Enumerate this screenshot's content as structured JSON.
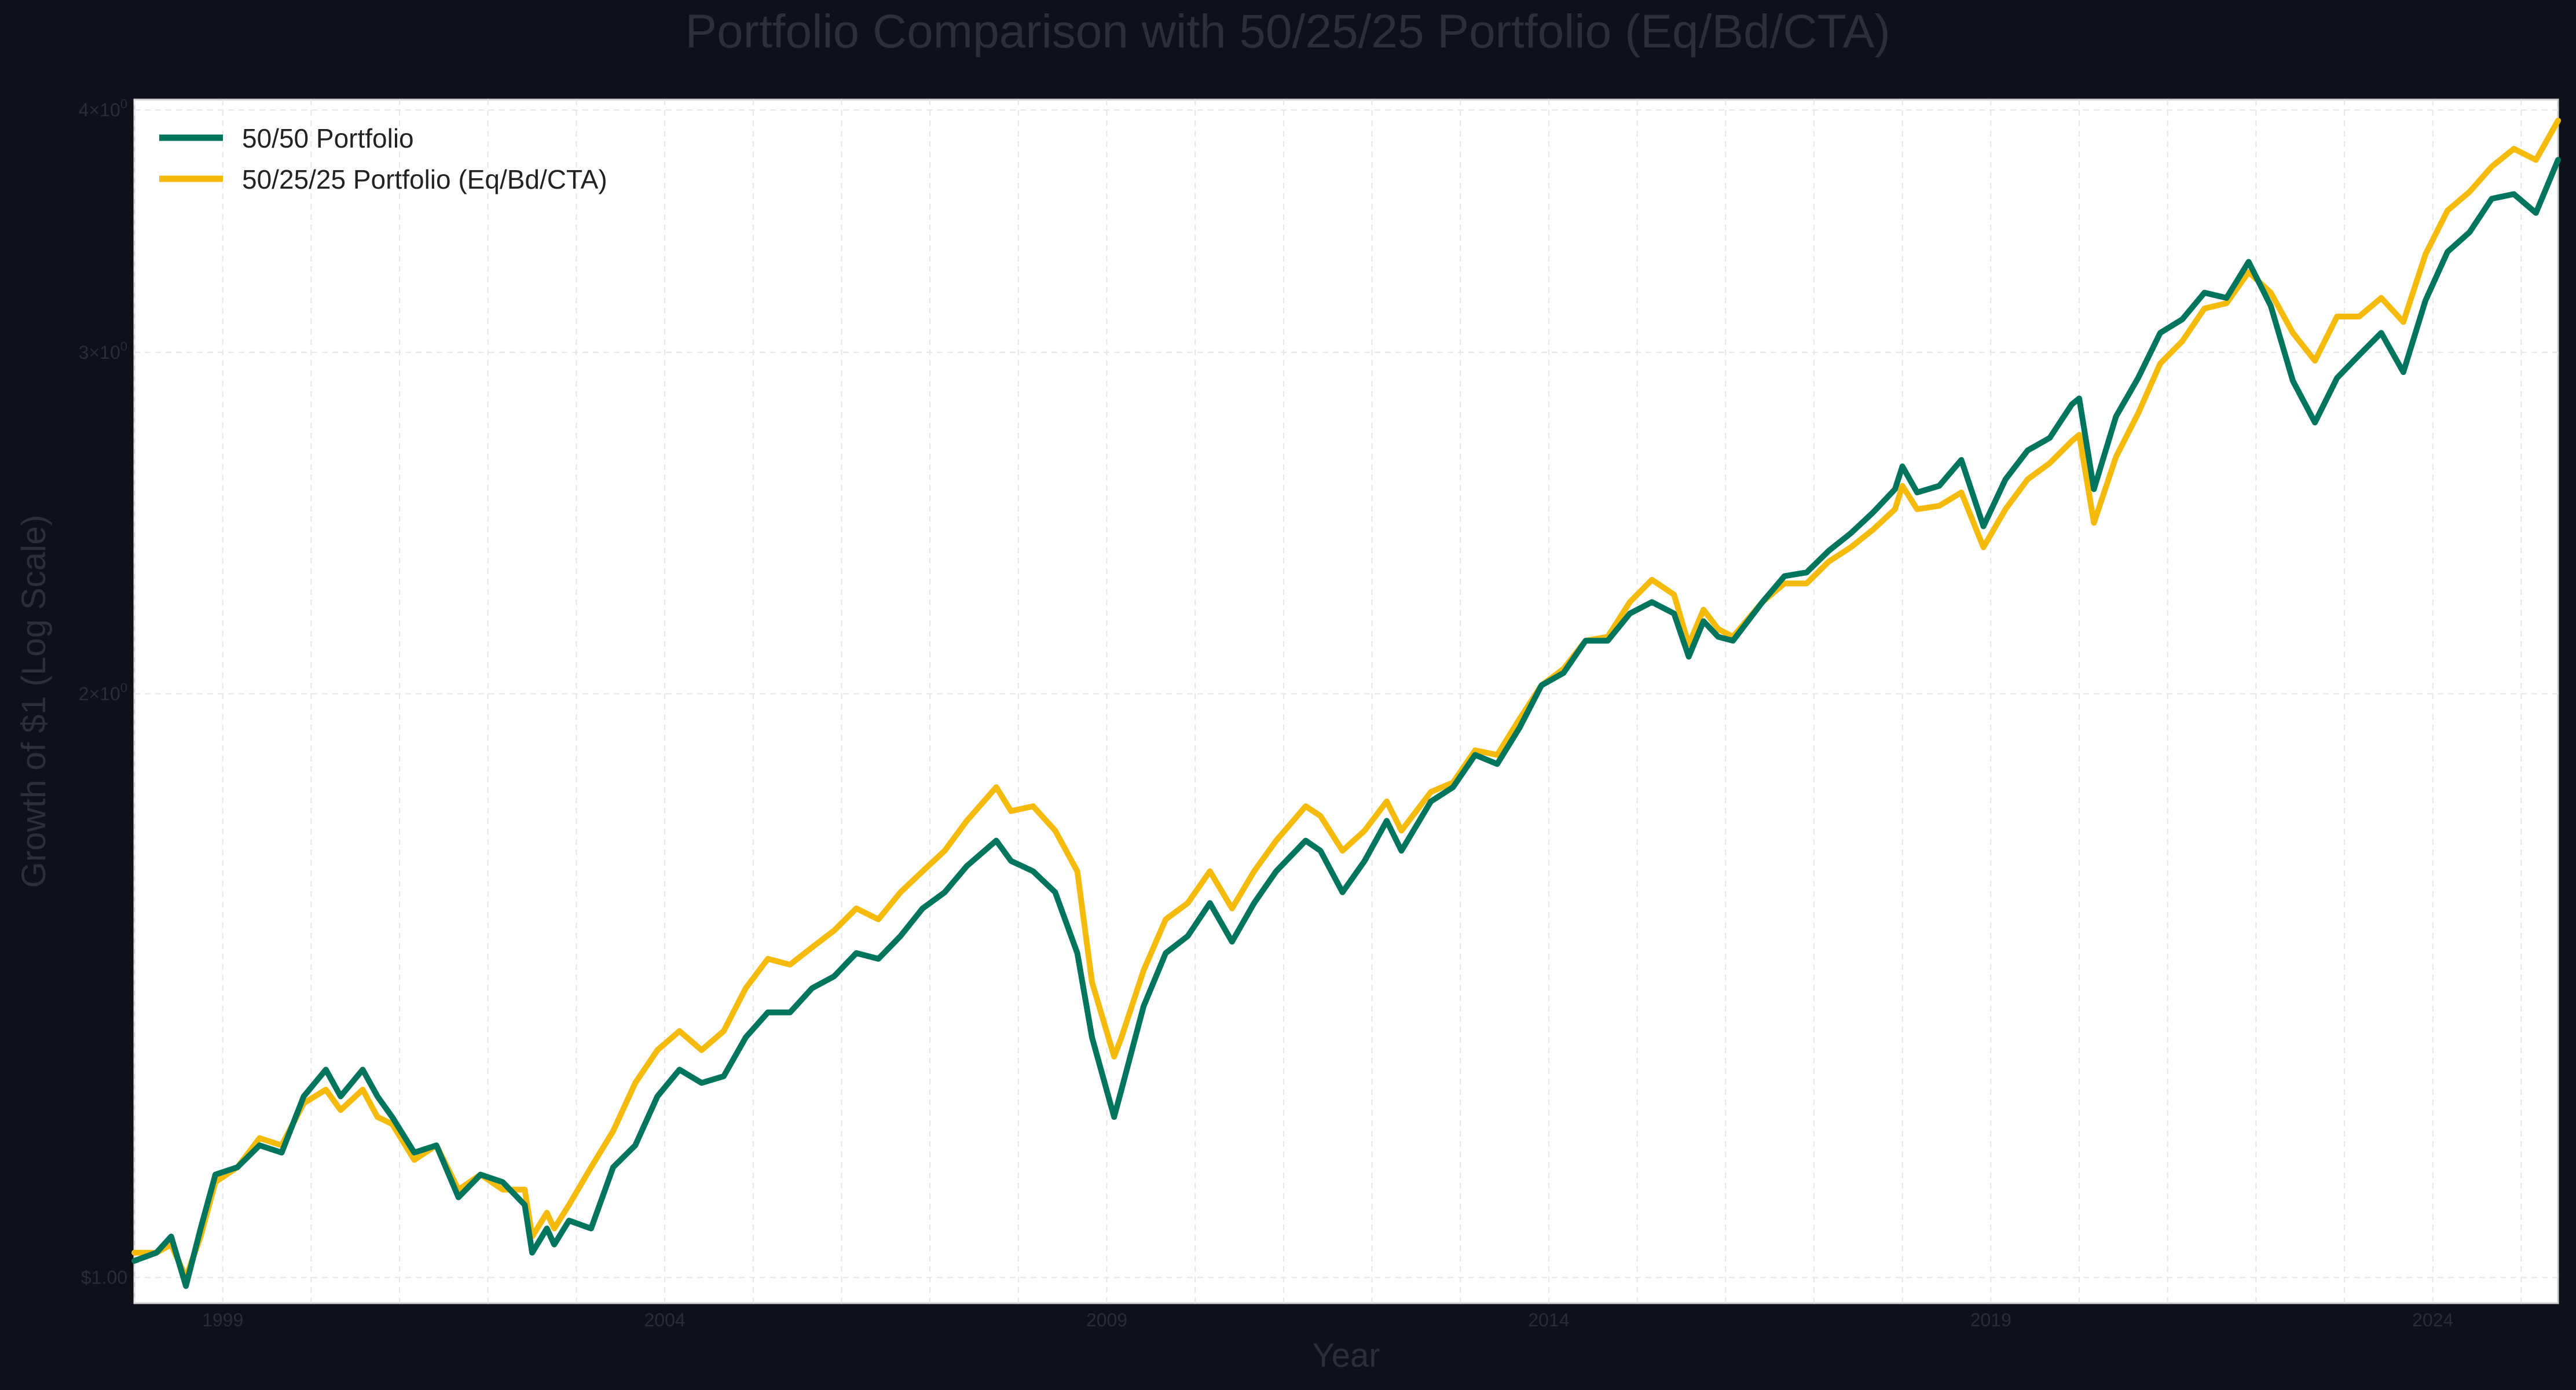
{
  "chart_data": {
    "type": "line",
    "title": "Portfolio Comparison with 50/25/25 Portfolio (Eq/Bd/CTA)",
    "xlabel": "Year",
    "ylabel": "Growth of $1 (Log Scale)",
    "y_scale": "log",
    "grid": true,
    "legend_position": "top-left",
    "xlim": [
      "1998-01",
      "2025-06"
    ],
    "ylim": [
      0.97,
      4.05
    ],
    "x_ticks": [
      {
        "label": "1999",
        "value": "1999-01"
      },
      {
        "label": "2004",
        "value": "2004-01"
      },
      {
        "label": "2009",
        "value": "2009-01"
      },
      {
        "label": "2014",
        "value": "2014-01"
      },
      {
        "label": "2019",
        "value": "2019-01"
      },
      {
        "label": "2024",
        "value": "2024-01"
      }
    ],
    "y_ticks": [
      {
        "value": 1,
        "label": "$1.00"
      },
      {
        "value": 2,
        "base": "2×10",
        "exp": "0"
      },
      {
        "value": 3,
        "base": "3×10",
        "exp": "0"
      },
      {
        "value": 4,
        "base": "4×10",
        "exp": "0"
      }
    ],
    "series": [
      {
        "name": "50/50 Portfolio",
        "color": "#00755e",
        "points": [
          [
            "1998-01",
            1.02
          ],
          [
            "1998-04",
            1.03
          ],
          [
            "1998-06",
            1.05
          ],
          [
            "1998-08",
            0.99
          ],
          [
            "1998-10",
            1.06
          ],
          [
            "1998-12",
            1.13
          ],
          [
            "1999-03",
            1.14
          ],
          [
            "1999-06",
            1.17
          ],
          [
            "1999-09",
            1.16
          ],
          [
            "1999-12",
            1.24
          ],
          [
            "2000-03",
            1.28
          ],
          [
            "2000-05",
            1.24
          ],
          [
            "2000-08",
            1.28
          ],
          [
            "2000-10",
            1.24
          ],
          [
            "2000-12",
            1.21
          ],
          [
            "2001-03",
            1.16
          ],
          [
            "2001-06",
            1.17
          ],
          [
            "2001-09",
            1.1
          ],
          [
            "2001-12",
            1.13
          ],
          [
            "2002-03",
            1.12
          ],
          [
            "2002-06",
            1.09
          ],
          [
            "2002-07",
            1.03
          ],
          [
            "2002-09",
            1.06
          ],
          [
            "2002-10",
            1.04
          ],
          [
            "2002-12",
            1.07
          ],
          [
            "2003-03",
            1.06
          ],
          [
            "2003-06",
            1.14
          ],
          [
            "2003-09",
            1.17
          ],
          [
            "2003-12",
            1.24
          ],
          [
            "2004-03",
            1.28
          ],
          [
            "2004-06",
            1.26
          ],
          [
            "2004-09",
            1.27
          ],
          [
            "2004-12",
            1.33
          ],
          [
            "2005-03",
            1.37
          ],
          [
            "2005-06",
            1.37
          ],
          [
            "2005-09",
            1.41
          ],
          [
            "2005-12",
            1.43
          ],
          [
            "2006-03",
            1.47
          ],
          [
            "2006-06",
            1.46
          ],
          [
            "2006-09",
            1.5
          ],
          [
            "2006-12",
            1.55
          ],
          [
            "2007-03",
            1.58
          ],
          [
            "2007-06",
            1.63
          ],
          [
            "2007-10",
            1.68
          ],
          [
            "2007-12",
            1.64
          ],
          [
            "2008-03",
            1.62
          ],
          [
            "2008-06",
            1.58
          ],
          [
            "2008-09",
            1.47
          ],
          [
            "2008-11",
            1.33
          ],
          [
            "2009-02",
            1.21
          ],
          [
            "2009-03",
            1.25
          ],
          [
            "2009-06",
            1.38
          ],
          [
            "2009-09",
            1.47
          ],
          [
            "2009-12",
            1.5
          ],
          [
            "2010-03",
            1.56
          ],
          [
            "2010-06",
            1.49
          ],
          [
            "2010-09",
            1.56
          ],
          [
            "2010-12",
            1.62
          ],
          [
            "2011-04",
            1.68
          ],
          [
            "2011-06",
            1.66
          ],
          [
            "2011-09",
            1.58
          ],
          [
            "2011-12",
            1.64
          ],
          [
            "2012-03",
            1.72
          ],
          [
            "2012-05",
            1.66
          ],
          [
            "2012-09",
            1.76
          ],
          [
            "2012-12",
            1.79
          ],
          [
            "2013-03",
            1.86
          ],
          [
            "2013-06",
            1.84
          ],
          [
            "2013-09",
            1.92
          ],
          [
            "2013-12",
            2.02
          ],
          [
            "2014-03",
            2.05
          ],
          [
            "2014-06",
            2.13
          ],
          [
            "2014-09",
            2.13
          ],
          [
            "2014-12",
            2.2
          ],
          [
            "2015-03",
            2.23
          ],
          [
            "2015-06",
            2.2
          ],
          [
            "2015-08",
            2.09
          ],
          [
            "2015-10",
            2.18
          ],
          [
            "2015-12",
            2.14
          ],
          [
            "2016-02",
            2.13
          ],
          [
            "2016-06",
            2.23
          ],
          [
            "2016-09",
            2.3
          ],
          [
            "2016-12",
            2.31
          ],
          [
            "2017-03",
            2.37
          ],
          [
            "2017-06",
            2.42
          ],
          [
            "2017-09",
            2.48
          ],
          [
            "2017-12",
            2.55
          ],
          [
            "2018-01",
            2.62
          ],
          [
            "2018-03",
            2.54
          ],
          [
            "2018-06",
            2.56
          ],
          [
            "2018-09",
            2.64
          ],
          [
            "2018-12",
            2.44
          ],
          [
            "2019-03",
            2.58
          ],
          [
            "2019-06",
            2.67
          ],
          [
            "2019-09",
            2.71
          ],
          [
            "2019-12",
            2.82
          ],
          [
            "2020-01",
            2.84
          ],
          [
            "2020-03",
            2.55
          ],
          [
            "2020-06",
            2.78
          ],
          [
            "2020-09",
            2.91
          ],
          [
            "2020-12",
            3.07
          ],
          [
            "2021-03",
            3.12
          ],
          [
            "2021-06",
            3.22
          ],
          [
            "2021-09",
            3.2
          ],
          [
            "2021-12",
            3.34
          ],
          [
            "2022-03",
            3.17
          ],
          [
            "2022-06",
            2.9
          ],
          [
            "2022-09",
            2.76
          ],
          [
            "2022-12",
            2.91
          ],
          [
            "2023-03",
            2.99
          ],
          [
            "2023-06",
            3.07
          ],
          [
            "2023-09",
            2.93
          ],
          [
            "2023-12",
            3.19
          ],
          [
            "2024-03",
            3.38
          ],
          [
            "2024-06",
            3.46
          ],
          [
            "2024-09",
            3.6
          ],
          [
            "2024-12",
            3.62
          ],
          [
            "2025-03",
            3.54
          ],
          [
            "2025-06",
            3.77
          ]
        ]
      },
      {
        "name": "50/25/25 Portfolio (Eq/Bd/CTA)",
        "color": "#f4bb0c",
        "points": [
          [
            "1998-01",
            1.03
          ],
          [
            "1998-04",
            1.03
          ],
          [
            "1998-06",
            1.04
          ],
          [
            "1998-08",
            1.0
          ],
          [
            "1998-10",
            1.05
          ],
          [
            "1998-12",
            1.12
          ],
          [
            "1999-03",
            1.14
          ],
          [
            "1999-06",
            1.18
          ],
          [
            "1999-09",
            1.17
          ],
          [
            "1999-12",
            1.23
          ],
          [
            "2000-03",
            1.25
          ],
          [
            "2000-05",
            1.22
          ],
          [
            "2000-08",
            1.25
          ],
          [
            "2000-10",
            1.21
          ],
          [
            "2000-12",
            1.2
          ],
          [
            "2001-03",
            1.15
          ],
          [
            "2001-06",
            1.17
          ],
          [
            "2001-09",
            1.11
          ],
          [
            "2001-12",
            1.13
          ],
          [
            "2002-03",
            1.11
          ],
          [
            "2002-06",
            1.11
          ],
          [
            "2002-07",
            1.05
          ],
          [
            "2002-09",
            1.08
          ],
          [
            "2002-10",
            1.06
          ],
          [
            "2002-12",
            1.09
          ],
          [
            "2003-03",
            1.14
          ],
          [
            "2003-06",
            1.19
          ],
          [
            "2003-09",
            1.26
          ],
          [
            "2003-12",
            1.31
          ],
          [
            "2004-03",
            1.34
          ],
          [
            "2004-06",
            1.31
          ],
          [
            "2004-09",
            1.34
          ],
          [
            "2004-12",
            1.41
          ],
          [
            "2005-03",
            1.46
          ],
          [
            "2005-06",
            1.45
          ],
          [
            "2005-09",
            1.48
          ],
          [
            "2005-12",
            1.51
          ],
          [
            "2006-03",
            1.55
          ],
          [
            "2006-06",
            1.53
          ],
          [
            "2006-09",
            1.58
          ],
          [
            "2006-12",
            1.62
          ],
          [
            "2007-03",
            1.66
          ],
          [
            "2007-06",
            1.72
          ],
          [
            "2007-10",
            1.79
          ],
          [
            "2007-12",
            1.74
          ],
          [
            "2008-03",
            1.75
          ],
          [
            "2008-06",
            1.7
          ],
          [
            "2008-09",
            1.62
          ],
          [
            "2008-11",
            1.42
          ],
          [
            "2009-02",
            1.3
          ],
          [
            "2009-03",
            1.33
          ],
          [
            "2009-06",
            1.44
          ],
          [
            "2009-09",
            1.53
          ],
          [
            "2009-12",
            1.56
          ],
          [
            "2010-03",
            1.62
          ],
          [
            "2010-06",
            1.55
          ],
          [
            "2010-09",
            1.62
          ],
          [
            "2010-12",
            1.68
          ],
          [
            "2011-04",
            1.75
          ],
          [
            "2011-06",
            1.73
          ],
          [
            "2011-09",
            1.66
          ],
          [
            "2011-12",
            1.7
          ],
          [
            "2012-03",
            1.76
          ],
          [
            "2012-05",
            1.7
          ],
          [
            "2012-09",
            1.78
          ],
          [
            "2012-12",
            1.8
          ],
          [
            "2013-03",
            1.87
          ],
          [
            "2013-06",
            1.86
          ],
          [
            "2013-09",
            1.94
          ],
          [
            "2013-12",
            2.02
          ],
          [
            "2014-03",
            2.06
          ],
          [
            "2014-06",
            2.13
          ],
          [
            "2014-09",
            2.14
          ],
          [
            "2014-12",
            2.23
          ],
          [
            "2015-03",
            2.29
          ],
          [
            "2015-06",
            2.25
          ],
          [
            "2015-08",
            2.12
          ],
          [
            "2015-10",
            2.21
          ],
          [
            "2015-12",
            2.16
          ],
          [
            "2016-02",
            2.14
          ],
          [
            "2016-06",
            2.23
          ],
          [
            "2016-09",
            2.28
          ],
          [
            "2016-12",
            2.28
          ],
          [
            "2017-03",
            2.34
          ],
          [
            "2017-06",
            2.38
          ],
          [
            "2017-09",
            2.43
          ],
          [
            "2017-12",
            2.49
          ],
          [
            "2018-01",
            2.56
          ],
          [
            "2018-03",
            2.49
          ],
          [
            "2018-06",
            2.5
          ],
          [
            "2018-09",
            2.54
          ],
          [
            "2018-12",
            2.38
          ],
          [
            "2019-03",
            2.49
          ],
          [
            "2019-06",
            2.58
          ],
          [
            "2019-09",
            2.63
          ],
          [
            "2019-12",
            2.7
          ],
          [
            "2020-01",
            2.72
          ],
          [
            "2020-03",
            2.45
          ],
          [
            "2020-06",
            2.65
          ],
          [
            "2020-09",
            2.79
          ],
          [
            "2020-12",
            2.96
          ],
          [
            "2021-03",
            3.04
          ],
          [
            "2021-06",
            3.16
          ],
          [
            "2021-09",
            3.18
          ],
          [
            "2021-12",
            3.3
          ],
          [
            "2022-03",
            3.22
          ],
          [
            "2022-06",
            3.07
          ],
          [
            "2022-09",
            2.97
          ],
          [
            "2022-12",
            3.13
          ],
          [
            "2023-03",
            3.13
          ],
          [
            "2023-06",
            3.2
          ],
          [
            "2023-09",
            3.11
          ],
          [
            "2023-12",
            3.37
          ],
          [
            "2024-03",
            3.55
          ],
          [
            "2024-06",
            3.63
          ],
          [
            "2024-09",
            3.74
          ],
          [
            "2024-12",
            3.82
          ],
          [
            "2025-03",
            3.77
          ],
          [
            "2025-06",
            3.95
          ]
        ]
      }
    ]
  }
}
